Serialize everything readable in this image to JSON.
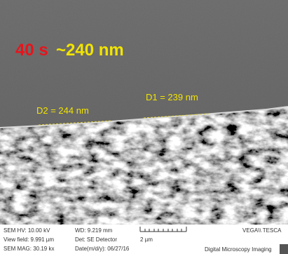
{
  "overlay": {
    "time": "40 s",
    "thickness": "~240 nm",
    "d1": "D1 = 239 nm",
    "d2": "D2 = 244 nm"
  },
  "footer": {
    "hv": "SEM HV: 10.00 kV",
    "view_field": "View field: 9.991 µm",
    "mag": "SEM MAG: 30.19 kx",
    "wd": "WD: 9.219 mm",
    "detector": "Det: SE Detector",
    "date": "Date(m/d/y): 06/27/16",
    "scale": "2 µm",
    "brand": "VEGA\\\\ TESCA",
    "imaging": "Digital Microscopy Imaging"
  }
}
